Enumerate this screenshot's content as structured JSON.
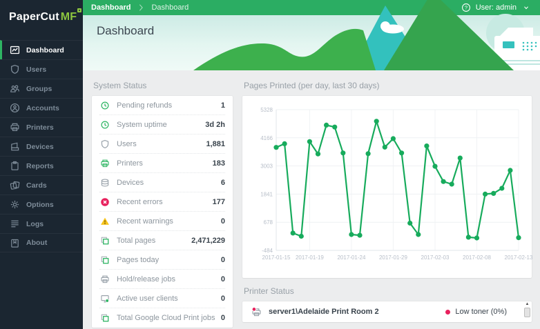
{
  "app": {
    "logo_primary": "PaperCut",
    "logo_suffix": "MF"
  },
  "topbar": {
    "breadcrumb": [
      "Dashboard",
      "Dashboard"
    ],
    "user_label": "User: admin"
  },
  "header": {
    "title": "Dashboard"
  },
  "sidebar": {
    "items": [
      {
        "label": "Dashboard",
        "icon": "dashboard-icon",
        "active": true
      },
      {
        "label": "Users",
        "icon": "users-icon",
        "active": false
      },
      {
        "label": "Groups",
        "icon": "groups-icon",
        "active": false
      },
      {
        "label": "Accounts",
        "icon": "accounts-icon",
        "active": false
      },
      {
        "label": "Printers",
        "icon": "printers-icon",
        "active": false
      },
      {
        "label": "Devices",
        "icon": "devices-icon",
        "active": false
      },
      {
        "label": "Reports",
        "icon": "reports-icon",
        "active": false
      },
      {
        "label": "Cards",
        "icon": "cards-icon",
        "active": false
      },
      {
        "label": "Options",
        "icon": "options-icon",
        "active": false
      },
      {
        "label": "Logs",
        "icon": "logs-icon",
        "active": false
      },
      {
        "label": "About",
        "icon": "about-icon",
        "active": false
      }
    ]
  },
  "system_status": {
    "title": "System Status",
    "rows": [
      {
        "icon": "clock-icon",
        "icon_color": "green",
        "label": "Pending refunds",
        "value": "1"
      },
      {
        "icon": "clock-icon",
        "icon_color": "green",
        "label": "System uptime",
        "value": "3d 2h"
      },
      {
        "icon": "shield-icon",
        "icon_color": "gray",
        "label": "Users",
        "value": "1,881"
      },
      {
        "icon": "printer-icon",
        "icon_color": "green",
        "label": "Printers",
        "value": "183"
      },
      {
        "icon": "stack-icon",
        "icon_color": "gray",
        "label": "Devices",
        "value": "6"
      },
      {
        "icon": "error-icon",
        "icon_color": "red",
        "label": "Recent errors",
        "value": "177"
      },
      {
        "icon": "warning-icon",
        "icon_color": "yellow",
        "label": "Recent warnings",
        "value": "0"
      },
      {
        "icon": "pages-icon",
        "icon_color": "green",
        "label": "Total pages",
        "value": "2,471,229"
      },
      {
        "icon": "pages-icon",
        "icon_color": "green",
        "label": "Pages today",
        "value": "0"
      },
      {
        "icon": "printer-icon",
        "icon_color": "gray",
        "label": "Hold/release jobs",
        "value": "0"
      },
      {
        "icon": "client-icon",
        "icon_color": "gray",
        "label": "Active user clients",
        "value": "0"
      },
      {
        "icon": "pages-icon",
        "icon_color": "green",
        "label": "Total Google Cloud Print jobs",
        "value": "0"
      }
    ]
  },
  "chart_data": {
    "type": "line",
    "title": "Pages Printed (per day, last 30 days)",
    "x": [
      "2017-01-15",
      "2017-01-16",
      "2017-01-17",
      "2017-01-18",
      "2017-01-19",
      "2017-01-20",
      "2017-01-21",
      "2017-01-22",
      "2017-01-23",
      "2017-01-24",
      "2017-01-25",
      "2017-01-26",
      "2017-01-27",
      "2017-01-28",
      "2017-01-29",
      "2017-01-30",
      "2017-01-31",
      "2017-02-01",
      "2017-02-02",
      "2017-02-03",
      "2017-02-04",
      "2017-02-05",
      "2017-02-06",
      "2017-02-07",
      "2017-02-08",
      "2017-02-09",
      "2017-02-10",
      "2017-02-11",
      "2017-02-12",
      "2017-02-13"
    ],
    "values": [
      3770,
      3920,
      230,
      100,
      4010,
      3500,
      4690,
      4610,
      3540,
      170,
      140,
      3510,
      4850,
      3780,
      4130,
      3540,
      640,
      170,
      3830,
      2990,
      2360,
      2250,
      3330,
      60,
      30,
      1840,
      1870,
      2080,
      2820,
      40
    ],
    "y_ticks": [
      5328,
      4166,
      3003,
      1841,
      678,
      -484
    ],
    "x_tick_labels": [
      "2017-01-15",
      "2017-01-19",
      "2017-01-24",
      "2017-01-29",
      "2017-02-03",
      "2017-02-08",
      "2017-02-13"
    ],
    "x_tick_indices": [
      0,
      4,
      9,
      14,
      19,
      24,
      29
    ],
    "ylim": [
      -484,
      5328
    ],
    "grid": true,
    "legend": false,
    "line_color": "#17ab5c"
  },
  "printer_status": {
    "title": "Printer Status",
    "rows": [
      {
        "icon": "printer-alert-icon",
        "name": "server1\\Adelaide Print Room 2",
        "status": "Low toner (0%)",
        "status_color": "#e8215d"
      }
    ]
  },
  "colors": {
    "accent_green": "#2bad63",
    "sidebar_bg": "#1b2631",
    "logo_green": "#8dc63f",
    "error_red": "#e8215d",
    "warning_yellow": "#f7c51e",
    "chart_line": "#17ab5c"
  }
}
